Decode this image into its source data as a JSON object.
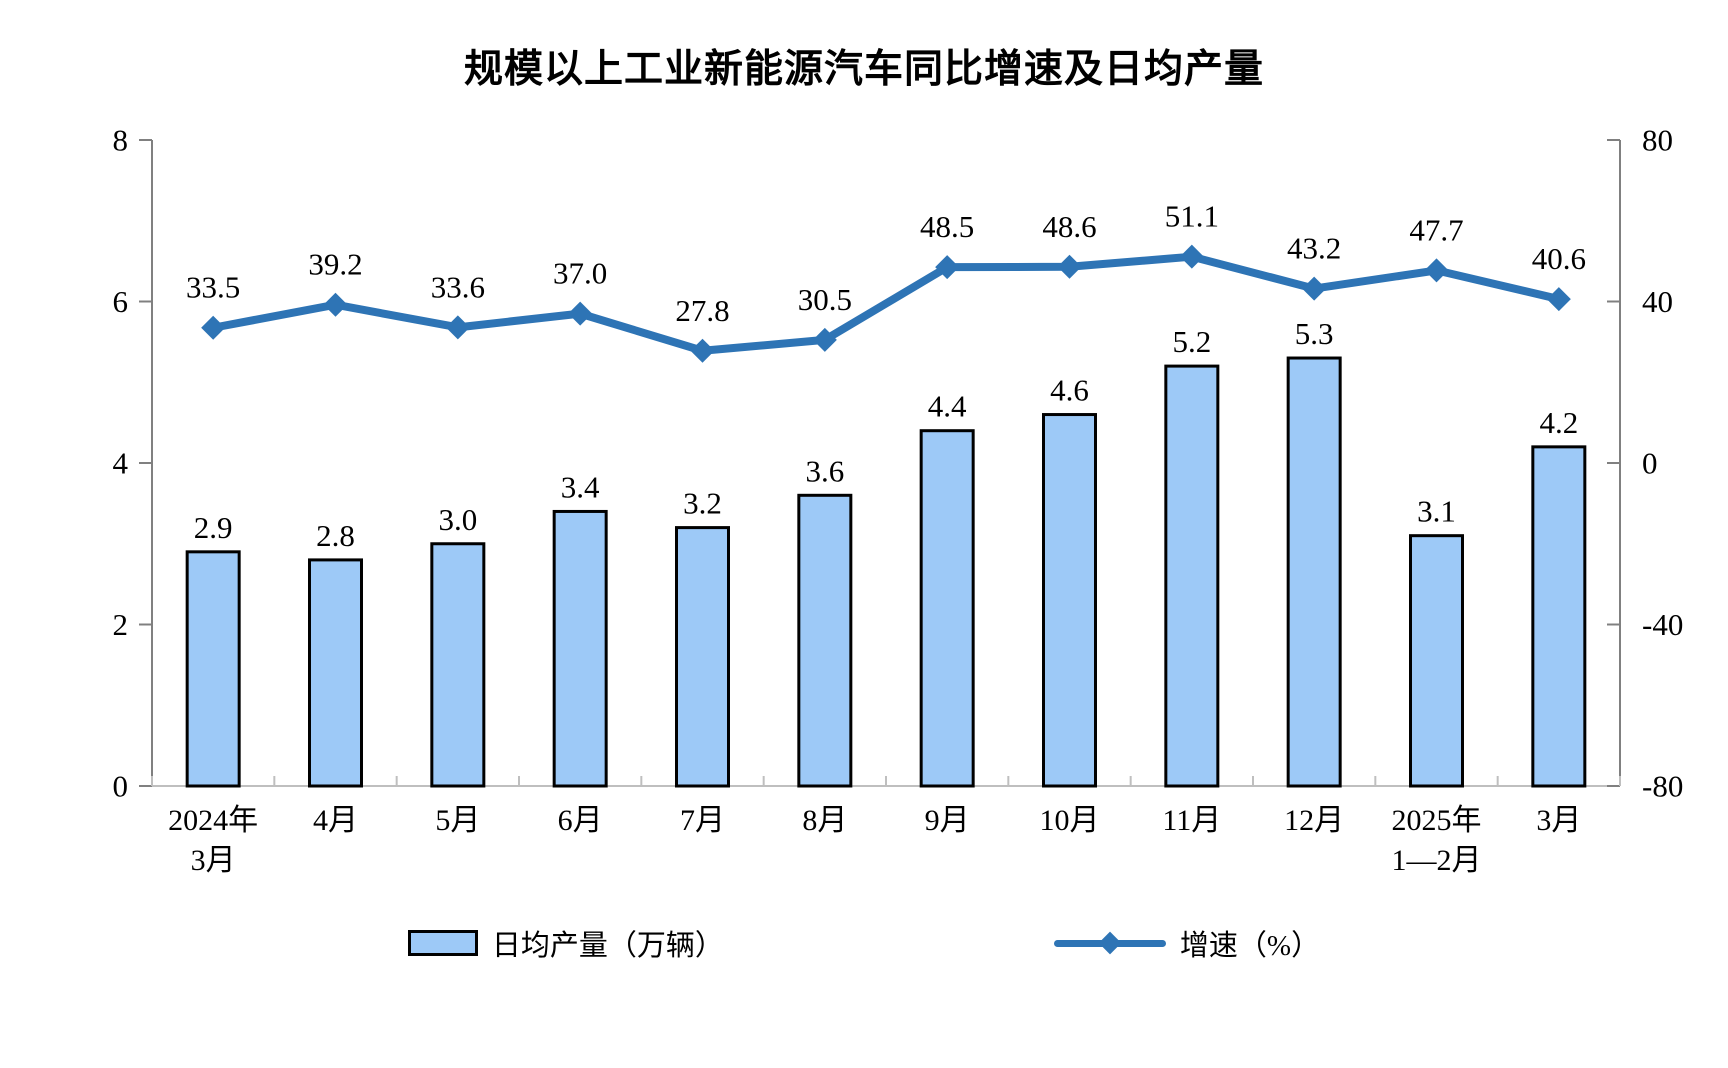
{
  "chart_data": {
    "type": "combo-bar-line",
    "title": "规模以上工业新能源汽车同比增速及日均产量",
    "categories": [
      "2024年\n3月",
      "4月",
      "5月",
      "6月",
      "7月",
      "8月",
      "9月",
      "10月",
      "11月",
      "12月",
      "2025年\n1—2月",
      "3月"
    ],
    "series": [
      {
        "name": "日均产量（万辆）",
        "type": "bar",
        "axis": "left",
        "values": [
          2.9,
          2.8,
          3.0,
          3.4,
          3.2,
          3.6,
          4.4,
          4.6,
          5.2,
          5.3,
          3.1,
          4.2
        ]
      },
      {
        "name": "增速（%）",
        "type": "line",
        "axis": "right",
        "values": [
          33.5,
          39.2,
          33.6,
          37.0,
          27.8,
          30.5,
          48.5,
          48.6,
          51.1,
          43.2,
          47.7,
          40.6
        ]
      }
    ],
    "left_axis": {
      "min": 0,
      "max": 8,
      "ticks": [
        0,
        2,
        4,
        6,
        8
      ]
    },
    "right_axis": {
      "min": -80,
      "max": 80,
      "ticks": [
        -80,
        -40,
        0,
        40,
        80
      ]
    },
    "grid": false,
    "legend_position": "bottom",
    "value_labels": true,
    "colors": {
      "bar_fill": "#9DC9F7",
      "bar_border": "#000000",
      "line": "#2E74B5",
      "text": "#000000",
      "axis_line": "#808080",
      "bottom_axis_line": "#BFBFBF"
    }
  }
}
